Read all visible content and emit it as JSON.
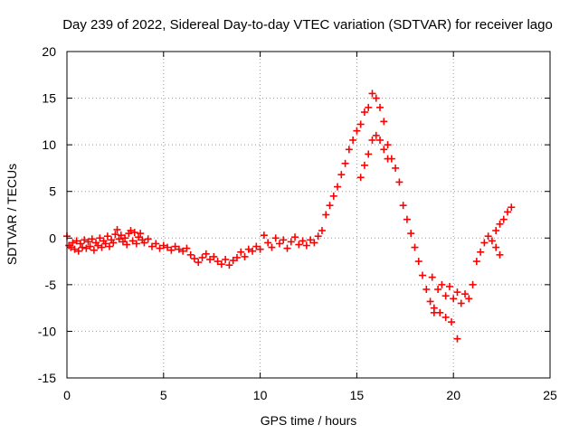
{
  "chart_data": {
    "type": "scatter",
    "title": "Day 239 of 2022, Sidereal Day-to-day VTEC variation (SDTVAR) for receiver lago",
    "xlabel": "GPS time / hours",
    "ylabel": "SDTVAR / TECUs",
    "xlim": [
      0,
      25
    ],
    "ylim": [
      -15,
      20
    ],
    "xticks": [
      0,
      5,
      10,
      15,
      20,
      25
    ],
    "yticks": [
      -15,
      -10,
      -5,
      0,
      5,
      10,
      15,
      20
    ],
    "grid": true,
    "marker": "+",
    "color": "#ff0000",
    "series": [
      {
        "name": "SDTVAR",
        "points": [
          [
            0.0,
            0.2
          ],
          [
            0.1,
            -0.8
          ],
          [
            0.2,
            -1.0
          ],
          [
            0.3,
            -0.5
          ],
          [
            0.4,
            -1.2
          ],
          [
            0.5,
            -0.3
          ],
          [
            0.6,
            -1.4
          ],
          [
            0.7,
            -0.6
          ],
          [
            0.8,
            -1.0
          ],
          [
            0.9,
            -0.2
          ],
          [
            1.0,
            -1.1
          ],
          [
            1.1,
            -0.4
          ],
          [
            1.2,
            -0.9
          ],
          [
            1.3,
            -0.1
          ],
          [
            1.4,
            -1.3
          ],
          [
            1.5,
            -0.5
          ],
          [
            1.6,
            -0.8
          ],
          [
            1.7,
            0.0
          ],
          [
            1.8,
            -1.0
          ],
          [
            1.9,
            -0.3
          ],
          [
            2.0,
            -0.6
          ],
          [
            2.1,
            0.2
          ],
          [
            2.2,
            -0.9
          ],
          [
            2.3,
            -0.2
          ],
          [
            2.4,
            -0.5
          ],
          [
            2.5,
            0.4
          ],
          [
            2.6,
            0.9
          ],
          [
            2.7,
            -0.1
          ],
          [
            2.8,
            0.3
          ],
          [
            2.9,
            -0.4
          ],
          [
            3.0,
            0.0
          ],
          [
            3.1,
            -0.7
          ],
          [
            3.2,
            0.5
          ],
          [
            3.3,
            0.8
          ],
          [
            3.4,
            -0.3
          ],
          [
            3.5,
            0.6
          ],
          [
            3.6,
            -0.6
          ],
          [
            3.7,
            0.1
          ],
          [
            3.8,
            0.5
          ],
          [
            3.9,
            -0.2
          ],
          [
            4.0,
            -0.5
          ],
          [
            4.2,
            -0.1
          ],
          [
            4.4,
            -0.9
          ],
          [
            4.6,
            -0.6
          ],
          [
            4.8,
            -1.1
          ],
          [
            5.0,
            -0.8
          ],
          [
            5.2,
            -1.0
          ],
          [
            5.4,
            -1.3
          ],
          [
            5.6,
            -0.9
          ],
          [
            5.8,
            -1.2
          ],
          [
            6.0,
            -1.4
          ],
          [
            6.2,
            -1.1
          ],
          [
            6.4,
            -1.8
          ],
          [
            6.6,
            -2.2
          ],
          [
            6.8,
            -2.6
          ],
          [
            7.0,
            -2.1
          ],
          [
            7.2,
            -1.7
          ],
          [
            7.4,
            -2.3
          ],
          [
            7.6,
            -2.0
          ],
          [
            7.8,
            -2.5
          ],
          [
            8.0,
            -2.8
          ],
          [
            8.2,
            -2.3
          ],
          [
            8.4,
            -2.9
          ],
          [
            8.6,
            -2.4
          ],
          [
            8.8,
            -2.1
          ],
          [
            9.0,
            -1.5
          ],
          [
            9.2,
            -2.0
          ],
          [
            9.4,
            -1.2
          ],
          [
            9.6,
            -1.4
          ],
          [
            9.8,
            -0.9
          ],
          [
            10.0,
            -1.2
          ],
          [
            10.2,
            0.3
          ],
          [
            10.4,
            -0.5
          ],
          [
            10.6,
            -1.0
          ],
          [
            10.8,
            0.0
          ],
          [
            11.0,
            -0.6
          ],
          [
            11.2,
            -0.2
          ],
          [
            11.4,
            -1.1
          ],
          [
            11.6,
            -0.4
          ],
          [
            11.8,
            0.1
          ],
          [
            12.0,
            -0.7
          ],
          [
            12.2,
            -0.3
          ],
          [
            12.4,
            -0.8
          ],
          [
            12.6,
            -0.2
          ],
          [
            12.8,
            -0.5
          ],
          [
            13.0,
            0.2
          ],
          [
            13.2,
            0.8
          ],
          [
            13.4,
            2.5
          ],
          [
            13.6,
            3.5
          ],
          [
            13.8,
            4.5
          ],
          [
            14.0,
            5.5
          ],
          [
            14.2,
            6.8
          ],
          [
            14.4,
            8.0
          ],
          [
            14.6,
            9.5
          ],
          [
            14.8,
            10.5
          ],
          [
            15.0,
            11.5
          ],
          [
            15.2,
            12.2
          ],
          [
            15.4,
            13.5
          ],
          [
            15.6,
            14.0
          ],
          [
            15.8,
            15.5
          ],
          [
            16.0,
            15.0
          ],
          [
            16.2,
            14.0
          ],
          [
            16.4,
            12.5
          ],
          [
            16.6,
            10.0
          ],
          [
            16.8,
            8.5
          ],
          [
            17.0,
            7.5
          ],
          [
            15.2,
            6.5
          ],
          [
            15.4,
            7.8
          ],
          [
            15.6,
            9.0
          ],
          [
            15.8,
            10.5
          ],
          [
            16.0,
            11.0
          ],
          [
            16.2,
            10.5
          ],
          [
            16.4,
            9.5
          ],
          [
            16.6,
            8.5
          ],
          [
            17.2,
            6.0
          ],
          [
            17.4,
            3.5
          ],
          [
            17.6,
            2.0
          ],
          [
            17.8,
            0.5
          ],
          [
            18.0,
            -1.0
          ],
          [
            18.2,
            -2.5
          ],
          [
            18.4,
            -4.0
          ],
          [
            18.6,
            -5.5
          ],
          [
            18.8,
            -6.8
          ],
          [
            19.0,
            -8.0
          ],
          [
            18.9,
            -4.2
          ],
          [
            19.2,
            -5.5
          ],
          [
            19.4,
            -5.0
          ],
          [
            19.6,
            -6.2
          ],
          [
            19.0,
            -7.5
          ],
          [
            19.3,
            -8.0
          ],
          [
            19.6,
            -8.5
          ],
          [
            19.9,
            -9.0
          ],
          [
            20.2,
            -10.8
          ],
          [
            19.8,
            -5.2
          ],
          [
            20.0,
            -6.5
          ],
          [
            20.2,
            -5.8
          ],
          [
            20.4,
            -7.0
          ],
          [
            20.6,
            -6.0
          ],
          [
            20.8,
            -6.5
          ],
          [
            21.0,
            -5.0
          ],
          [
            21.2,
            -2.5
          ],
          [
            21.4,
            -1.5
          ],
          [
            21.6,
            -0.5
          ],
          [
            21.8,
            0.2
          ],
          [
            22.0,
            -0.3
          ],
          [
            22.2,
            -1.0
          ],
          [
            22.4,
            -1.8
          ],
          [
            22.2,
            0.8
          ],
          [
            22.4,
            1.5
          ],
          [
            22.6,
            2.0
          ],
          [
            22.8,
            2.8
          ],
          [
            23.0,
            3.3
          ]
        ]
      }
    ]
  }
}
